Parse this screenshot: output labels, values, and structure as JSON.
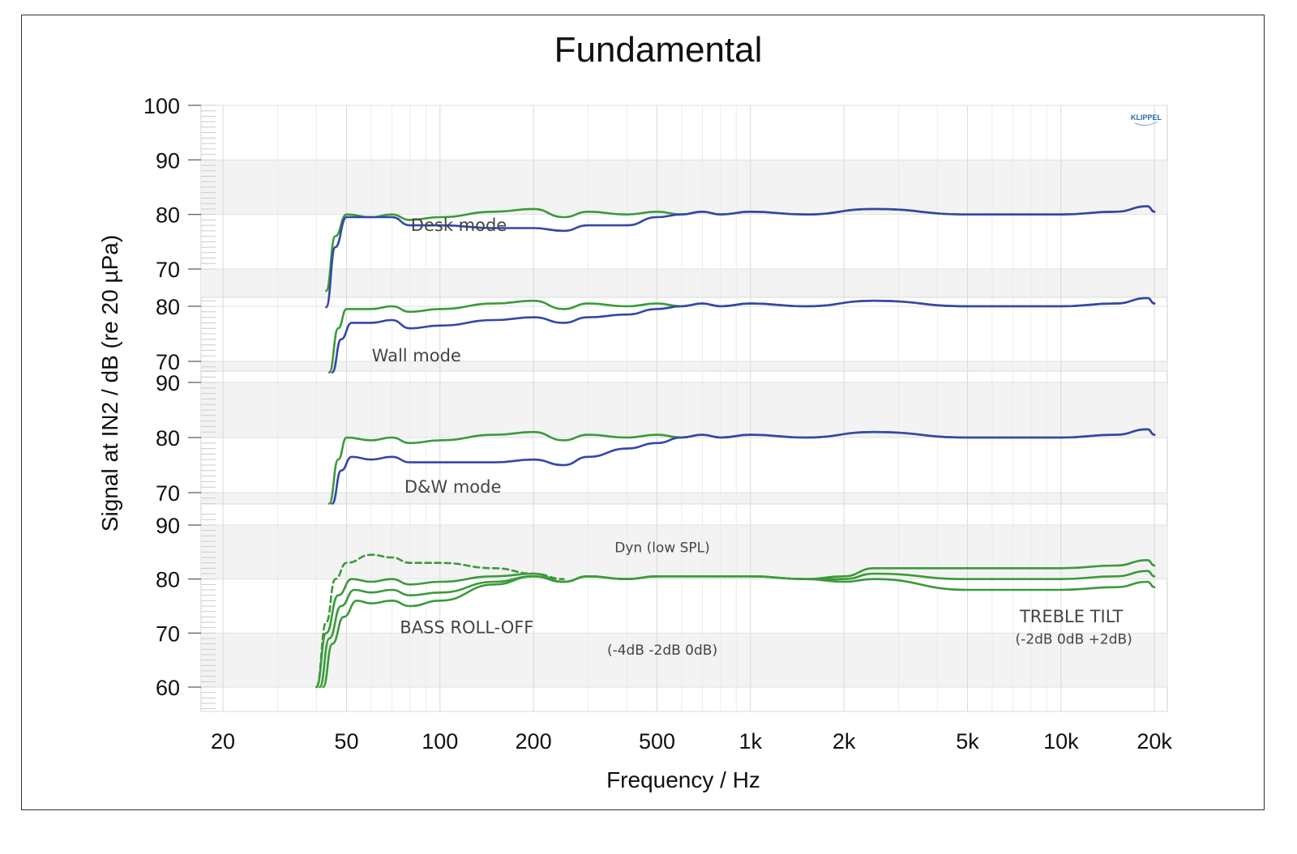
{
  "chart_data": {
    "type": "line",
    "title": "Fundamental",
    "xlabel": "Frequency / Hz",
    "ylabel": "Signal at IN2 / dB (re 20 µPa)",
    "xscale": "log",
    "xlim": [
      17,
      22000
    ],
    "x_ticks": [
      {
        "v": 20,
        "label": "20"
      },
      {
        "v": 50,
        "label": "50"
      },
      {
        "v": 100,
        "label": "100"
      },
      {
        "v": 200,
        "label": "200"
      },
      {
        "v": 500,
        "label": "500"
      },
      {
        "v": 1000,
        "label": "1k"
      },
      {
        "v": 2000,
        "label": "2k"
      },
      {
        "v": 5000,
        "label": "5k"
      },
      {
        "v": 10000,
        "label": "10k"
      },
      {
        "v": 20000,
        "label": "20k"
      }
    ],
    "grid": true,
    "logo": "KLIPPEL",
    "colors": {
      "green": "#3a9a3a",
      "blue": "#3546a8"
    },
    "panels": [
      {
        "name": "desk",
        "y_ticks": [
          {
            "v": 100,
            "label": "100"
          },
          {
            "v": 90,
            "label": "90"
          },
          {
            "v": 80,
            "label": "80"
          },
          {
            "v": 70,
            "label": "70"
          }
        ],
        "ylim": [
          70,
          100
        ],
        "annotations": [
          {
            "text": "Desk mode",
            "x": 115,
            "y": 77
          }
        ],
        "series": [
          {
            "color": "green",
            "dash": false,
            "x": [
              43,
              46,
              50,
              60,
              70,
              80,
              100,
              150,
              200,
              250,
              300,
              400,
              500,
              600,
              700,
              800,
              1000,
              1500,
              2500,
              5000,
              10000,
              15000,
              19000,
              20000
            ],
            "y": [
              66,
              76,
              80,
              79.5,
              80,
              79,
              79.5,
              80.5,
              81,
              79.5,
              80.5,
              80,
              80.5,
              80,
              80.5,
              80,
              80.5,
              80,
              81,
              80,
              80,
              80.5,
              81.5,
              80.5
            ]
          },
          {
            "color": "blue",
            "dash": false,
            "x": [
              43,
              46,
              50,
              60,
              70,
              80,
              100,
              150,
              200,
              250,
              300,
              400,
              500,
              600,
              700,
              800,
              1000,
              1500,
              2500,
              5000,
              10000,
              15000,
              19000,
              20000
            ],
            "y": [
              63,
              74,
              79.5,
              79.5,
              79.5,
              78,
              78,
              77.5,
              77.5,
              77,
              78,
              78,
              79.5,
              80,
              80.5,
              80,
              80.5,
              80,
              81,
              80,
              80,
              80.5,
              81.5,
              80.5
            ]
          }
        ]
      },
      {
        "name": "wall",
        "y_ticks": [
          {
            "v": 80,
            "label": "80"
          },
          {
            "v": 70,
            "label": "70"
          }
        ],
        "ylim": [
          68,
          82
        ],
        "annotations": [
          {
            "text": "Wall mode",
            "x": 84,
            "y": 70
          }
        ],
        "series": [
          {
            "color": "green",
            "dash": false,
            "x": [
              44,
              47,
              50,
              60,
              70,
              80,
              100,
              150,
              200,
              250,
              300,
              400,
              500,
              600,
              700,
              800,
              1000,
              1500,
              2500,
              5000,
              10000,
              15000,
              19000,
              20000
            ],
            "y": [
              68,
              76,
              79.5,
              79.5,
              80,
              79,
              79.5,
              80.5,
              81,
              79.5,
              80.5,
              80,
              80.5,
              80,
              80.5,
              80,
              80.5,
              80,
              81,
              80,
              80,
              80.5,
              81.5,
              80.5
            ]
          },
          {
            "color": "blue",
            "dash": false,
            "x": [
              45,
              48,
              52,
              60,
              70,
              80,
              100,
              150,
              200,
              250,
              300,
              400,
              500,
              600,
              700,
              800,
              1000,
              1500,
              2500,
              5000,
              10000,
              15000,
              19000,
              20000
            ],
            "y": [
              68,
              74,
              77,
              77,
              77.5,
              76,
              76.5,
              77.5,
              78,
              77,
              78,
              78.5,
              79.5,
              80,
              80.5,
              80,
              80.5,
              80,
              81,
              80,
              80,
              80.5,
              81.5,
              80.5
            ]
          }
        ]
      },
      {
        "name": "dw",
        "y_ticks": [
          {
            "v": 90,
            "label": "90"
          },
          {
            "v": 80,
            "label": "80"
          },
          {
            "v": 70,
            "label": "70"
          }
        ],
        "ylim": [
          68,
          92
        ],
        "annotations": [
          {
            "text": "D&W mode",
            "x": 110,
            "y": 70
          }
        ],
        "series": [
          {
            "color": "green",
            "dash": false,
            "x": [
              44,
              47,
              50,
              60,
              70,
              80,
              100,
              150,
              200,
              250,
              300,
              400,
              500,
              600,
              700,
              800,
              1000,
              1500,
              2500,
              5000,
              10000,
              15000,
              19000,
              20000
            ],
            "y": [
              68,
              76,
              80,
              79.5,
              80,
              79,
              79.5,
              80.5,
              81,
              79.5,
              80.5,
              80,
              80.5,
              80,
              80.5,
              80,
              80.5,
              80,
              81,
              80,
              80,
              80.5,
              81.5,
              80.5
            ]
          },
          {
            "color": "blue",
            "dash": false,
            "x": [
              45,
              48,
              52,
              60,
              70,
              80,
              100,
              150,
              200,
              250,
              300,
              400,
              500,
              600,
              700,
              800,
              1000,
              1500,
              2500,
              5000,
              10000,
              15000,
              19000,
              20000
            ],
            "y": [
              68,
              74,
              76.5,
              76,
              76.5,
              75.5,
              75.5,
              75.5,
              76,
              75,
              76.5,
              78,
              79,
              80,
              80.5,
              80,
              80.5,
              80,
              81,
              80,
              80,
              80.5,
              81.5,
              80.5
            ]
          }
        ]
      },
      {
        "name": "dyn",
        "y_ticks": [
          {
            "v": 90,
            "label": "90"
          },
          {
            "v": 80,
            "label": "80"
          },
          {
            "v": 70,
            "label": "70"
          },
          {
            "v": 60,
            "label": "60"
          }
        ],
        "ylim": [
          56,
          92
        ],
        "annotations": [
          {
            "text": "Dyn (low SPL)",
            "x": 520,
            "y": 85
          },
          {
            "text": "BASS  ROLL-OFF",
            "x": 122,
            "y": 70
          },
          {
            "text": "(-4dB  -2dB  0dB)",
            "x": 520,
            "y": 66
          },
          {
            "text": "TREBLE  TILT",
            "x": 10800,
            "y": 72
          },
          {
            "text": "(-2dB  0dB  +2dB)",
            "x": 11000,
            "y": 68
          }
        ],
        "series": [
          {
            "color": "green",
            "dash": true,
            "x": [
              40,
              43,
              46,
              50,
              60,
              70,
              80,
              100,
              150,
              200,
              250
            ],
            "y": [
              60,
              72,
              80,
              83,
              84.5,
              84,
              83,
              83,
              82,
              81,
              80
            ]
          },
          {
            "color": "green",
            "dash": false,
            "x": [
              40,
              43,
              47,
              52,
              60,
              70,
              80,
              100,
              150,
              200,
              250,
              300,
              400,
              500,
              700,
              1000,
              1500,
              2000,
              2500,
              5000,
              10000,
              15000,
              19000,
              20000
            ],
            "y": [
              60,
              70,
              77,
              80,
              79.5,
              80,
              79,
              79.5,
              80.5,
              81,
              79.5,
              80.5,
              80,
              80.5,
              80.5,
              80.5,
              80,
              80.5,
              82,
              82,
              82,
              82.5,
              83.5,
              82.5
            ]
          },
          {
            "color": "green",
            "dash": false,
            "x": [
              41,
              44,
              48,
              53,
              60,
              70,
              80,
              100,
              150,
              200,
              250,
              300,
              400,
              500,
              700,
              1000,
              1500,
              2000,
              2500,
              5000,
              10000,
              15000,
              19000,
              20000
            ],
            "y": [
              60,
              69,
              75,
              78,
              77.5,
              78,
              77,
              77.5,
              79.5,
              80.5,
              79.5,
              80.5,
              80,
              80.5,
              80.5,
              80.5,
              80,
              80,
              81,
              80,
              80,
              80.5,
              81.5,
              80.5
            ]
          },
          {
            "color": "green",
            "dash": false,
            "x": [
              42,
              45,
              49,
              54,
              60,
              70,
              80,
              100,
              150,
              200,
              250,
              300,
              400,
              500,
              700,
              1000,
              1500,
              2000,
              2500,
              5000,
              10000,
              15000,
              19000,
              20000
            ],
            "y": [
              60,
              68,
              73,
              76,
              75.5,
              76,
              75,
              76,
              79,
              80.5,
              79.5,
              80.5,
              80,
              80.5,
              80.5,
              80.5,
              80,
              79.5,
              80,
              78,
              78,
              78.5,
              79.5,
              78.5
            ]
          }
        ]
      }
    ]
  }
}
